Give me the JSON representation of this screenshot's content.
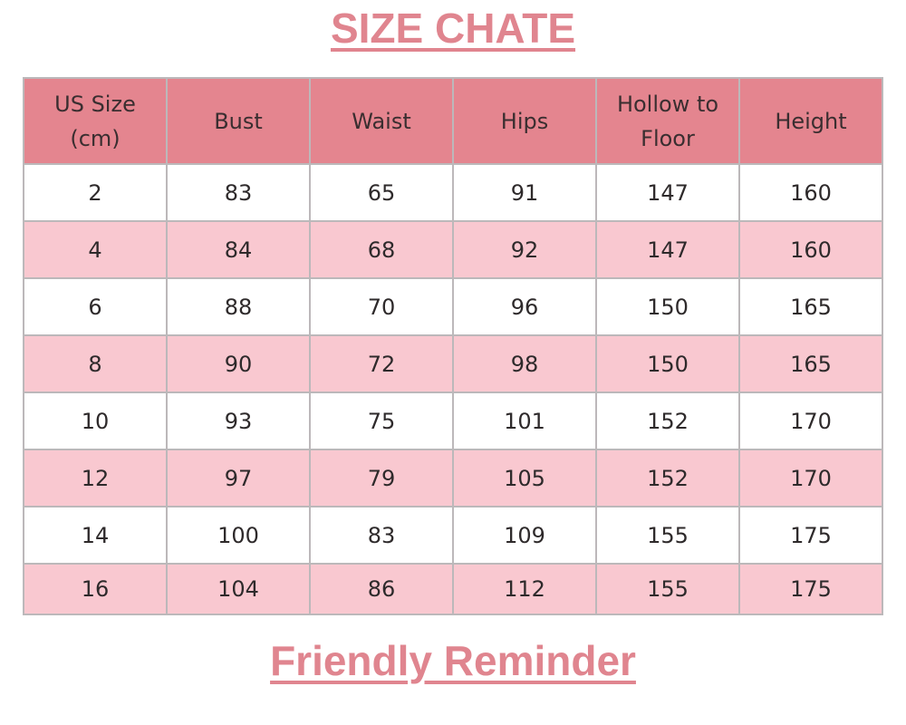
{
  "title": "SIZE CHATE",
  "footer_title": "Friendly Reminder",
  "colors": {
    "header_bg": "#e4858f",
    "alt_row_bg": "#f9c8d0",
    "title": "#e0858f",
    "border": "#bcb8ba"
  },
  "table": {
    "headers": [
      "US Size\n(cm)",
      "Bust",
      "Waist",
      "Hips",
      "Hollow to\nFloor",
      "Height"
    ],
    "header_lines": [
      [
        "US Size",
        "(cm)"
      ],
      [
        "Bust"
      ],
      [
        "Waist"
      ],
      [
        "Hips"
      ],
      [
        "Hollow to",
        "Floor"
      ],
      [
        "Height"
      ]
    ],
    "rows": [
      [
        "2",
        "83",
        "65",
        "91",
        "147",
        "160"
      ],
      [
        "4",
        "84",
        "68",
        "92",
        "147",
        "160"
      ],
      [
        "6",
        "88",
        "70",
        "96",
        "150",
        "165"
      ],
      [
        "8",
        "90",
        "72",
        "98",
        "150",
        "165"
      ],
      [
        "10",
        "93",
        "75",
        "101",
        "152",
        "170"
      ],
      [
        "12",
        "97",
        "79",
        "105",
        "152",
        "170"
      ],
      [
        "14",
        "100",
        "83",
        "109",
        "155",
        "175"
      ],
      [
        "16",
        "104",
        "86",
        "112",
        "155",
        "175"
      ]
    ]
  }
}
